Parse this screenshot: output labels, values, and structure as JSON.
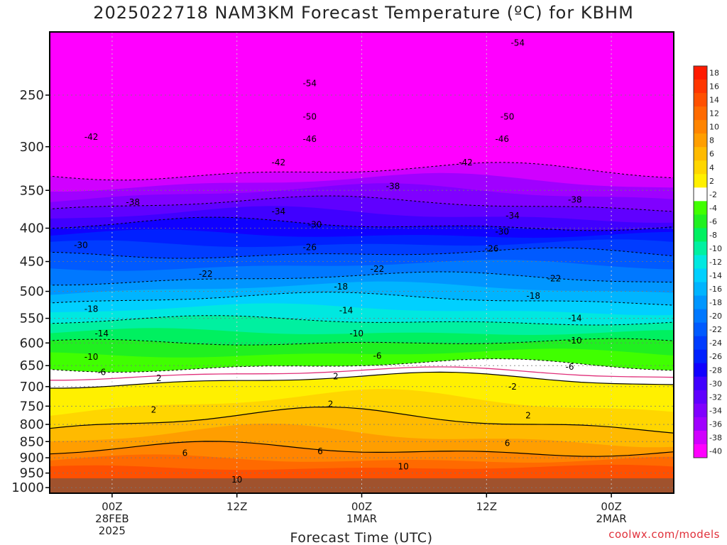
{
  "title": "2025022718 NAM3KM Forecast Temperature (ºC) for KBHM",
  "credit": "coolwx.com/models",
  "chart_data": {
    "type": "heatmap",
    "title": "2025022718 NAM3KM Forecast Temperature (ºC) for KBHM",
    "xlabel": "Forecast Time (UTC)",
    "ylabel": "",
    "x_ticks": [
      {
        "hours": 6,
        "lines": [
          "00Z",
          "28FEB",
          "2025"
        ]
      },
      {
        "hours": 18,
        "lines": [
          "12Z"
        ]
      },
      {
        "hours": 30,
        "lines": [
          "00Z",
          "1MAR"
        ]
      },
      {
        "hours": 42,
        "lines": [
          "12Z"
        ]
      },
      {
        "hours": 54,
        "lines": [
          "00Z",
          "2MAR"
        ]
      }
    ],
    "xlim_hours": [
      0,
      60
    ],
    "y_ticks": [
      250,
      300,
      350,
      400,
      450,
      500,
      550,
      600,
      650,
      700,
      750,
      800,
      850,
      900,
      950,
      1000
    ],
    "ylim": [
      200,
      1020
    ],
    "y_scale": "log",
    "grid": true,
    "colorbar": {
      "labels": [
        18,
        16,
        14,
        12,
        10,
        8,
        6,
        4,
        2,
        -2,
        -4,
        -6,
        -8,
        -10,
        -12,
        -14,
        -16,
        -18,
        -20,
        -22,
        -24,
        -26,
        -28,
        -30,
        -32,
        -34,
        -36,
        -38,
        -40
      ],
      "colors": [
        "#ff1a00",
        "#ff3600",
        "#ff5000",
        "#ff6a00",
        "#ff8400",
        "#ff9e00",
        "#ffba00",
        "#ffd600",
        "#fff000",
        "#ffffff",
        "#40ff00",
        "#20f020",
        "#00f060",
        "#00f0a0",
        "#00e8e0",
        "#00d0ff",
        "#00b4ff",
        "#0096ff",
        "#0078ff",
        "#005aff",
        "#003cff",
        "#0020ff",
        "#1000ff",
        "#4000ff",
        "#6000ff",
        "#8000ff",
        "#a000ff",
        "#d000ff",
        "#ff00ff"
      ]
    },
    "contour_labels": [
      {
        "text": "-54",
        "hours": 25,
        "pressure": 240
      },
      {
        "text": "-54",
        "hours": 45,
        "pressure": 208
      },
      {
        "text": "-50",
        "hours": 25,
        "pressure": 270
      },
      {
        "text": "-50",
        "hours": 44,
        "pressure": 270
      },
      {
        "text": "-46",
        "hours": 25,
        "pressure": 292
      },
      {
        "text": "-46",
        "hours": 43.5,
        "pressure": 292
      },
      {
        "text": "-42",
        "hours": 4,
        "pressure": 290
      },
      {
        "text": "-42",
        "hours": 22,
        "pressure": 317
      },
      {
        "text": "-42",
        "hours": 40,
        "pressure": 317
      },
      {
        "text": "-38",
        "hours": 8,
        "pressure": 365
      },
      {
        "text": "-38",
        "hours": 33,
        "pressure": 345
      },
      {
        "text": "-38",
        "hours": 50.5,
        "pressure": 362
      },
      {
        "text": "-34",
        "hours": 22,
        "pressure": 377
      },
      {
        "text": "-34",
        "hours": 44.5,
        "pressure": 383
      },
      {
        "text": "-30",
        "hours": 3,
        "pressure": 425
      },
      {
        "text": "-30",
        "hours": 25.5,
        "pressure": 395
      },
      {
        "text": "-30",
        "hours": 43.5,
        "pressure": 405
      },
      {
        "text": "-26",
        "hours": 25,
        "pressure": 428
      },
      {
        "text": "-26",
        "hours": 42.5,
        "pressure": 430
      },
      {
        "text": "-22",
        "hours": 15,
        "pressure": 470
      },
      {
        "text": "-22",
        "hours": 31.5,
        "pressure": 462
      },
      {
        "text": "-22",
        "hours": 48.5,
        "pressure": 478
      },
      {
        "text": "-18",
        "hours": 4,
        "pressure": 532
      },
      {
        "text": "-18",
        "hours": 28,
        "pressure": 492
      },
      {
        "text": "-18",
        "hours": 46.5,
        "pressure": 508
      },
      {
        "text": "-14",
        "hours": 5,
        "pressure": 580
      },
      {
        "text": "-14",
        "hours": 28.5,
        "pressure": 535
      },
      {
        "text": "-14",
        "hours": 50.5,
        "pressure": 550
      },
      {
        "text": "-10",
        "hours": 4,
        "pressure": 630
      },
      {
        "text": "-10",
        "hours": 29.5,
        "pressure": 580
      },
      {
        "text": "-10",
        "hours": 50.5,
        "pressure": 595
      },
      {
        "text": "-6",
        "hours": 5,
        "pressure": 665
      },
      {
        "text": "-6",
        "hours": 31.5,
        "pressure": 628
      },
      {
        "text": "-6",
        "hours": 50,
        "pressure": 653
      },
      {
        "text": "2",
        "hours": 10.5,
        "pressure": 680
      },
      {
        "text": "2",
        "hours": 27.5,
        "pressure": 675
      },
      {
        "text": "-2",
        "hours": 44.5,
        "pressure": 700
      },
      {
        "text": "2",
        "hours": 27,
        "pressure": 745
      },
      {
        "text": "2",
        "hours": 10,
        "pressure": 760
      },
      {
        "text": "2",
        "hours": 46,
        "pressure": 775
      },
      {
        "text": "6",
        "hours": 13,
        "pressure": 885
      },
      {
        "text": "6",
        "hours": 26,
        "pressure": 880
      },
      {
        "text": "6",
        "hours": 44,
        "pressure": 855
      },
      {
        "text": "10",
        "hours": 18,
        "pressure": 972
      },
      {
        "text": "10",
        "hours": 34,
        "pressure": 928
      }
    ]
  }
}
